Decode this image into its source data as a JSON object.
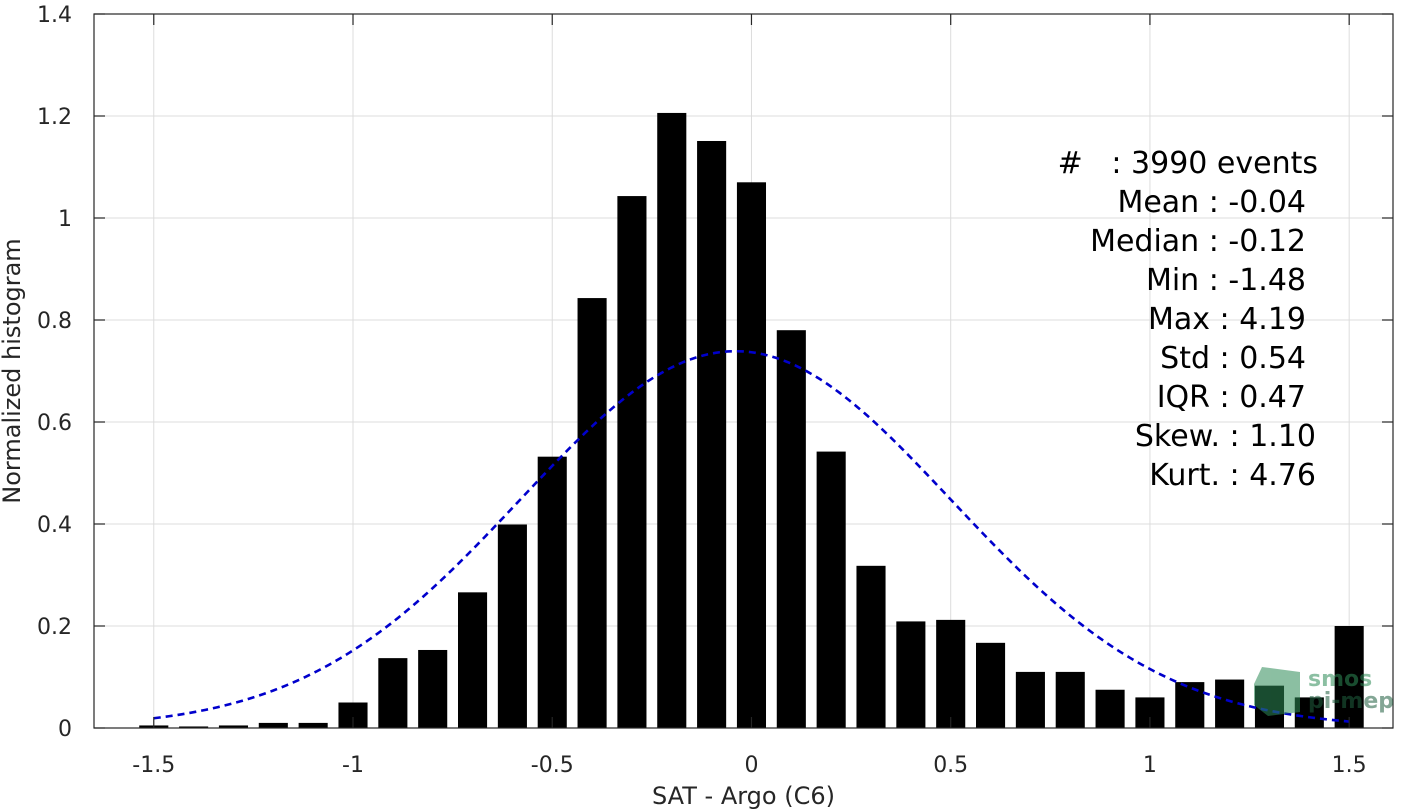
{
  "chart_data": {
    "type": "bar",
    "xlabel": "SAT - Argo (C6)",
    "ylabel": "Normalized histogram",
    "xlim": [
      -1.65,
      1.61
    ],
    "ylim": [
      0,
      1.4
    ],
    "x_ticks": [
      -1.5,
      -1,
      -0.5,
      0,
      0.5,
      1,
      1.5
    ],
    "x_tick_labels": [
      "-1.5",
      "-1",
      "-0.5",
      "0",
      "0.5",
      "1",
      "1.5"
    ],
    "y_ticks": [
      0,
      0.2,
      0.4,
      0.6,
      0.8,
      1,
      1.2,
      1.4
    ],
    "y_tick_labels": [
      "0",
      "0.2",
      "0.4",
      "0.6",
      "0.8",
      "1",
      "1.2",
      "1.4"
    ],
    "grid": true,
    "bar_width": 0.073,
    "bin_centers": [
      -1.5,
      -1.4,
      -1.3,
      -1.2,
      -1.1,
      -1.0,
      -0.9,
      -0.8,
      -0.7,
      -0.6,
      -0.5,
      -0.4,
      -0.3,
      -0.2,
      -0.1,
      0.0,
      0.1,
      0.2,
      0.3,
      0.4,
      0.5,
      0.6,
      0.7,
      0.8,
      0.9,
      1.0,
      1.1,
      1.2,
      1.3,
      1.4,
      1.5
    ],
    "values": [
      0.005,
      0.003,
      0.005,
      0.01,
      0.01,
      0.05,
      0.137,
      0.153,
      0.266,
      0.399,
      0.532,
      0.843,
      1.043,
      1.206,
      1.151,
      1.07,
      0.78,
      0.542,
      0.318,
      0.209,
      0.212,
      0.167,
      0.11,
      0.11,
      0.075,
      0.06,
      0.09,
      0.095,
      0.083,
      0.06,
      0.2
    ],
    "bar_color": "#000000",
    "fit": {
      "kind": "normal",
      "mean": -0.04,
      "std": 0.54,
      "line_style": "dashed",
      "color": "#0000CC"
    },
    "stats_text": [
      "#   : 3990 events",
      "Mean : -0.04",
      "Median : -0.12",
      "Min : -1.48",
      "Max : 4.19",
      "Std : 0.54",
      "IQR : 0.47",
      "Skew. : 1.10",
      "Kurt. : 4.76"
    ],
    "watermark": {
      "line1": "smos",
      "line2": "pi-mep"
    }
  }
}
